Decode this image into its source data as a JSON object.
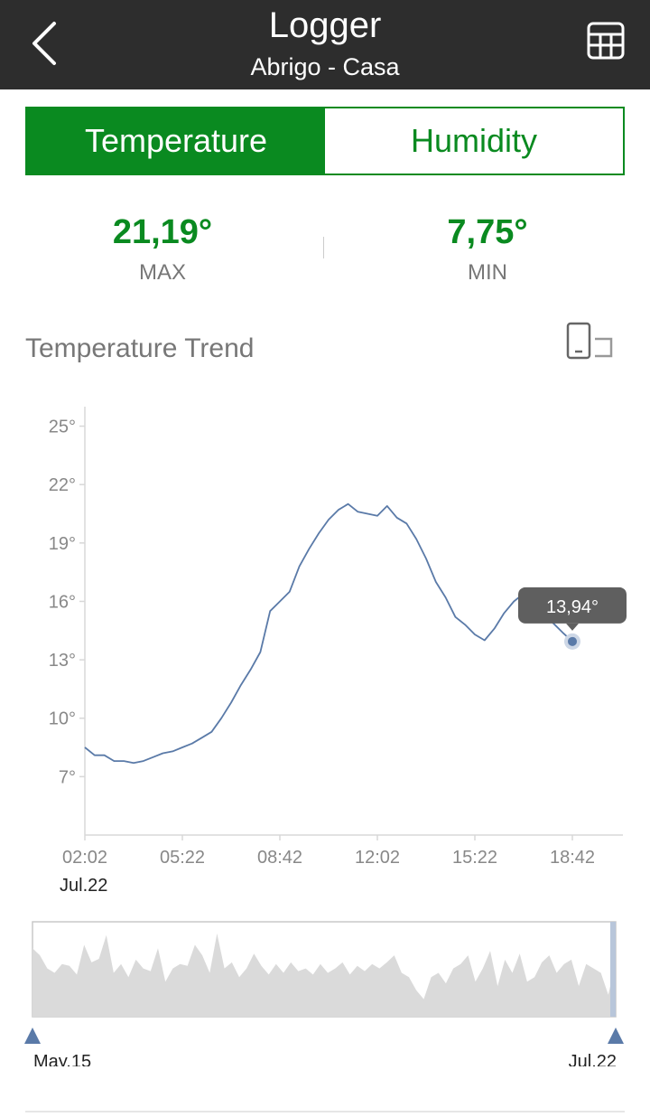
{
  "header": {
    "title": "Logger",
    "subtitle": "Abrigo - Casa"
  },
  "tabs": [
    {
      "label": "Temperature",
      "active": true
    },
    {
      "label": "Humidity",
      "active": false
    }
  ],
  "stats": {
    "max": {
      "value": "21,19°",
      "label": "MAX"
    },
    "min": {
      "value": "7,75°",
      "label": "MIN"
    }
  },
  "trend": {
    "title": "Temperature Trend"
  },
  "icons": {
    "back": "chevron-left-icon",
    "table": "table-grid-icon",
    "rotate": "rotate-landscape-icon"
  },
  "colors": {
    "accent": "#0a8a20",
    "header_bg": "#2d2d2d",
    "line": "#5a7aa8",
    "tooltip_bg": "#5f5f5f",
    "navigator_fill": "#dadada"
  },
  "chart_data": {
    "type": "line",
    "title": "",
    "xlabel": "",
    "ylabel": "",
    "ylim": [
      4,
      26
    ],
    "y_ticks": [
      "25°",
      "22°",
      "19°",
      "16°",
      "13°",
      "10°",
      "7°"
    ],
    "y_tick_values": [
      25,
      22,
      19,
      16,
      13,
      10,
      7
    ],
    "x_tick_labels": [
      "02:02",
      "05:22",
      "08:42",
      "12:02",
      "15:22",
      "18:42"
    ],
    "x_date_label": "Jul.22",
    "grid": false,
    "series": [
      {
        "name": "",
        "x": [
          "02:02",
          "02:22",
          "02:42",
          "03:02",
          "03:22",
          "03:42",
          "04:02",
          "04:22",
          "04:42",
          "05:02",
          "05:22",
          "05:42",
          "06:02",
          "06:22",
          "06:42",
          "07:02",
          "07:22",
          "07:42",
          "08:02",
          "08:22",
          "08:42",
          "09:02",
          "09:22",
          "09:42",
          "10:02",
          "10:22",
          "10:42",
          "11:02",
          "11:22",
          "11:42",
          "12:02",
          "12:22",
          "12:42",
          "13:02",
          "13:22",
          "13:42",
          "14:02",
          "14:22",
          "14:42",
          "15:02",
          "15:22",
          "15:42",
          "16:02",
          "16:22",
          "16:42",
          "17:02",
          "17:22",
          "17:42",
          "18:02",
          "18:22",
          "18:42"
        ],
        "values": [
          8.5,
          8.1,
          8.1,
          7.8,
          7.8,
          7.7,
          7.8,
          8.0,
          8.2,
          8.3,
          8.5,
          8.7,
          9.0,
          9.3,
          10.0,
          10.8,
          11.7,
          12.5,
          13.4,
          15.5,
          16.0,
          16.5,
          17.8,
          18.7,
          19.5,
          20.2,
          20.7,
          21.0,
          20.6,
          20.5,
          20.4,
          20.9,
          20.3,
          20.0,
          19.2,
          18.2,
          17.0,
          16.2,
          15.2,
          14.8,
          14.3,
          14.0,
          14.6,
          15.4,
          16.0,
          16.4,
          16.0,
          15.3,
          14.9,
          14.4,
          13.94
        ]
      }
    ],
    "tooltip": {
      "x": "18:42",
      "value": "13,94°"
    },
    "navigator": {
      "start_label": "May.15",
      "end_label": "Jul.22",
      "values": [
        0.78,
        0.7,
        0.55,
        0.5,
        0.6,
        0.58,
        0.48,
        0.82,
        0.62,
        0.66,
        0.93,
        0.5,
        0.6,
        0.45,
        0.65,
        0.55,
        0.52,
        0.78,
        0.4,
        0.55,
        0.6,
        0.58,
        0.82,
        0.7,
        0.5,
        0.95,
        0.55,
        0.62,
        0.45,
        0.55,
        0.72,
        0.58,
        0.48,
        0.6,
        0.5,
        0.62,
        0.52,
        0.55,
        0.48,
        0.6,
        0.5,
        0.55,
        0.62,
        0.48,
        0.58,
        0.52,
        0.6,
        0.55,
        0.62,
        0.7,
        0.5,
        0.45,
        0.3,
        0.2,
        0.45,
        0.5,
        0.38,
        0.55,
        0.6,
        0.7,
        0.4,
        0.55,
        0.75,
        0.35,
        0.65,
        0.5,
        0.72,
        0.4,
        0.45,
        0.62,
        0.7,
        0.5,
        0.6,
        0.65,
        0.35,
        0.6,
        0.55,
        0.5,
        0.25,
        0.62
      ]
    }
  }
}
